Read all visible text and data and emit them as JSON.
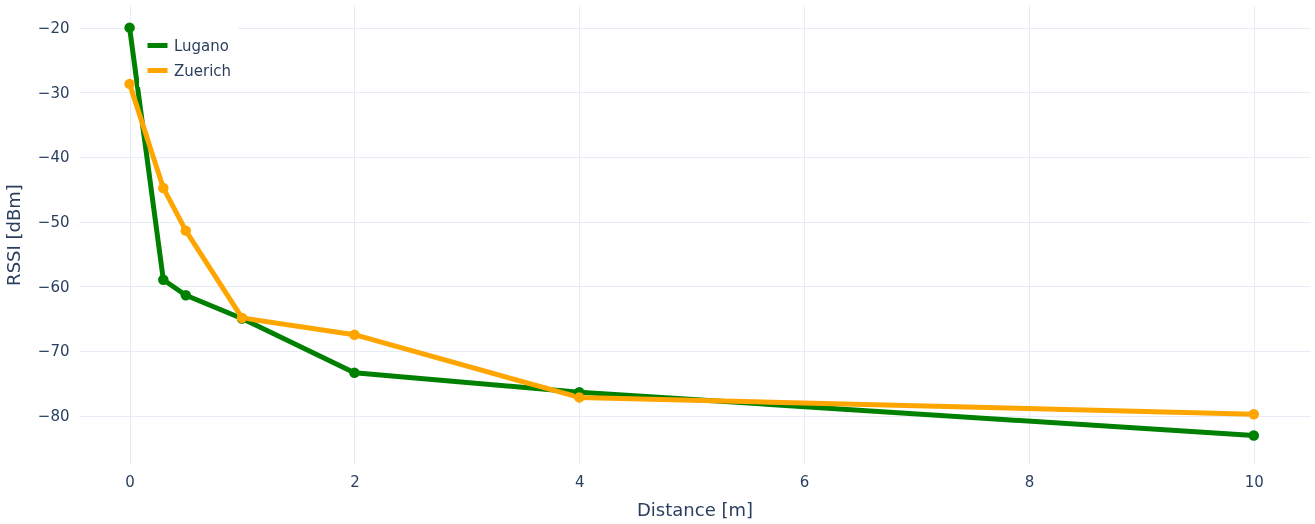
{
  "chart_data": {
    "type": "line",
    "xlabel": "Distance [m]",
    "ylabel": "RSSI [dBm]",
    "x": [
      0,
      0.3,
      0.5,
      1,
      2,
      4,
      10
    ],
    "series": [
      {
        "name": "Lugano",
        "color": "#008000",
        "values": [
          -20,
          -59,
          -61.4,
          -65,
          -73.4,
          -76.4,
          -83.1
        ]
      },
      {
        "name": "Zuerich",
        "color": "#ffa500",
        "values": [
          -28.7,
          -44.8,
          -51.4,
          -64.9,
          -67.5,
          -77.2,
          -79.8
        ]
      }
    ],
    "xlim": [
      -0.45,
      10.5
    ],
    "ylim": [
      -87.5,
      -16.5
    ],
    "xticks": [
      0,
      2,
      4,
      6,
      8,
      10
    ],
    "yticks": [
      -80,
      -70,
      -60,
      -50,
      -40,
      -30,
      -20
    ],
    "grid": true,
    "legend": "top left",
    "marker": "circle",
    "line_style": "solid"
  }
}
